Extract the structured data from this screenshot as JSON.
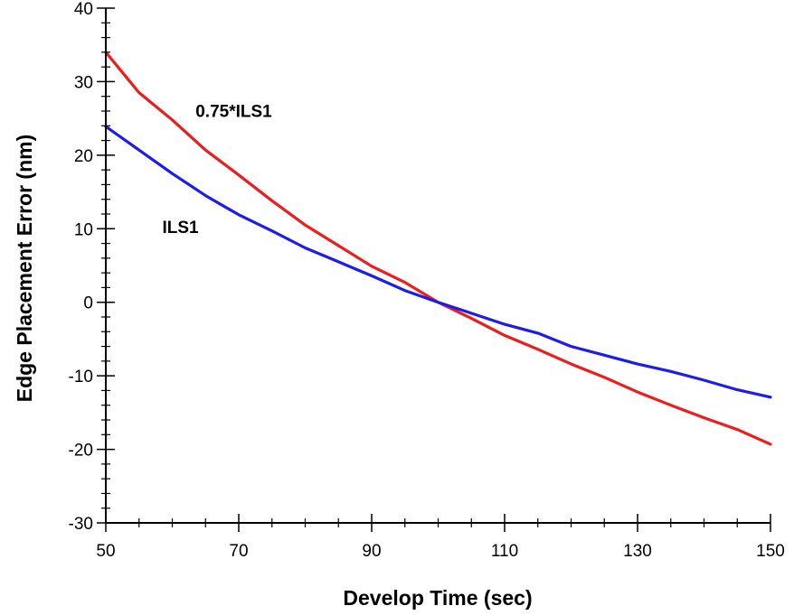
{
  "chart_data": {
    "type": "line",
    "xlabel": "Develop Time (sec)",
    "ylabel": "Edge Placement Error (nm)",
    "xlim": [
      50,
      150
    ],
    "ylim": [
      -30,
      40
    ],
    "xticks": [
      50,
      70,
      90,
      110,
      130,
      150
    ],
    "yticks": [
      40,
      30,
      20,
      10,
      0,
      -10,
      -20,
      -30
    ],
    "grid": false,
    "legend": "none",
    "series": [
      {
        "name": "0.75*ILS1",
        "color": "#ee1c1c",
        "x": [
          50,
          55,
          60,
          65,
          70,
          75,
          80,
          85,
          90,
          95,
          100,
          105,
          110,
          115,
          120,
          125,
          130,
          135,
          140,
          145,
          150
        ],
        "y": [
          34,
          28.5,
          24.8,
          20.7,
          17.3,
          13.8,
          10.5,
          7.7,
          4.9,
          2.7,
          0,
          -2.2,
          -4.5,
          -6.4,
          -8.4,
          -10.2,
          -12.2,
          -14,
          -15.7,
          -17.3,
          -19.3
        ]
      },
      {
        "name": "ILS1",
        "color": "#1c1cee",
        "x": [
          50,
          55,
          60,
          65,
          70,
          75,
          80,
          85,
          90,
          95,
          100,
          105,
          110,
          115,
          120,
          125,
          130,
          135,
          140,
          145,
          150
        ],
        "y": [
          23.9,
          20.7,
          17.5,
          14.5,
          11.9,
          9.7,
          7.4,
          5.5,
          3.6,
          1.6,
          0,
          -1.5,
          -3,
          -4.2,
          -6,
          -7.2,
          -8.4,
          -9.4,
          -10.6,
          -11.9,
          -12.9
        ]
      }
    ],
    "annotations": [
      {
        "text": "0.75*ILS1",
        "x": 63.5,
        "y": 25.2
      },
      {
        "text": "ILS1",
        "x": 58.5,
        "y": 9.4
      }
    ]
  }
}
